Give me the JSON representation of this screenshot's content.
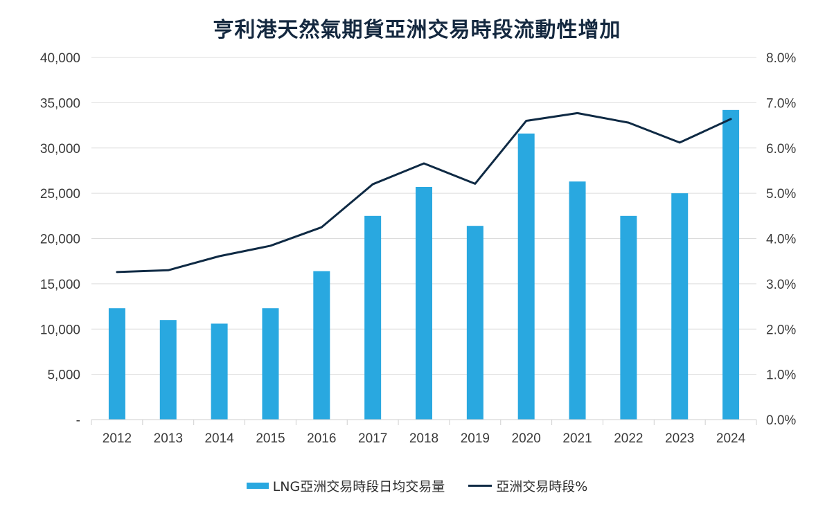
{
  "chart_data": {
    "type": "bar",
    "title": "亨利港天然氣期貨亞洲交易時段流動性增加",
    "categories": [
      "2012",
      "2013",
      "2014",
      "2015",
      "2016",
      "2017",
      "2018",
      "2019",
      "2020",
      "2021",
      "2022",
      "2023",
      "2024"
    ],
    "series": [
      {
        "name": "LNG亞洲交易時段日均交易量",
        "type": "bar",
        "axis": "left",
        "color": "#29A8E0",
        "values": [
          12300,
          11000,
          10600,
          12300,
          16400,
          22500,
          25700,
          21400,
          31600,
          26300,
          22500,
          25000,
          34200
        ]
      },
      {
        "name": "亞洲交易時段%",
        "type": "line",
        "axis": "right",
        "color": "#0F2A44",
        "values": [
          3.26,
          3.3,
          3.61,
          3.84,
          4.25,
          5.2,
          5.66,
          5.21,
          6.6,
          6.77,
          6.56,
          6.12,
          6.64
        ]
      }
    ],
    "y_left": {
      "ylim": [
        0,
        40000
      ],
      "ticks": [
        0,
        5000,
        10000,
        15000,
        20000,
        25000,
        30000,
        35000,
        40000
      ],
      "tick_labels": [
        "-",
        "5,000",
        "10,000",
        "15,000",
        "20,000",
        "25,000",
        "30,000",
        "35,000",
        "40,000"
      ]
    },
    "y_right": {
      "ylim": [
        0,
        8
      ],
      "ticks": [
        0,
        1,
        2,
        3,
        4,
        5,
        6,
        7,
        8
      ],
      "tick_labels": [
        "0.0%",
        "1.0%",
        "2.0%",
        "3.0%",
        "4.0%",
        "5.0%",
        "6.0%",
        "7.0%",
        "8.0%"
      ]
    },
    "xlabel": "",
    "ylabel": "",
    "grid": true,
    "legend_position": "bottom"
  }
}
